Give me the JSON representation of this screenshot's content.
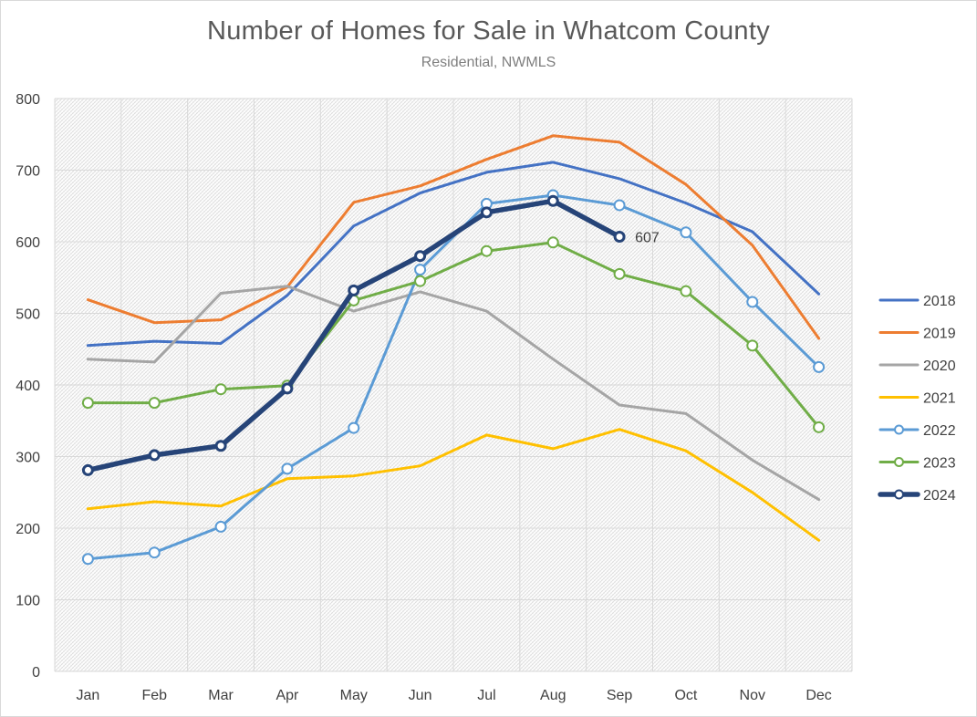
{
  "chart_data": {
    "type": "line",
    "title": "Number of Homes for Sale in Whatcom County",
    "subtitle": "Residential, NWMLS",
    "xlabel": "",
    "ylabel": "",
    "ylim": [
      0,
      800
    ],
    "yticks": [
      0,
      100,
      200,
      300,
      400,
      500,
      600,
      700,
      800
    ],
    "grid": true,
    "legend_position": "right",
    "categories": [
      "Jan",
      "Feb",
      "Mar",
      "Apr",
      "May",
      "Jun",
      "Jul",
      "Aug",
      "Sep",
      "Oct",
      "Nov",
      "Dec"
    ],
    "series": [
      {
        "name": "2018",
        "color": "#4472c4",
        "markers": false,
        "bold": false,
        "values": [
          455,
          461,
          458,
          525,
          622,
          668,
          697,
          711,
          688,
          654,
          614,
          527
        ]
      },
      {
        "name": "2019",
        "color": "#ed7d31",
        "markers": false,
        "bold": false,
        "values": [
          519,
          487,
          491,
          537,
          655,
          678,
          715,
          748,
          739,
          680,
          595,
          465
        ]
      },
      {
        "name": "2020",
        "color": "#a5a5a5",
        "markers": false,
        "bold": false,
        "values": [
          436,
          432,
          528,
          538,
          503,
          530,
          503,
          436,
          372,
          360,
          295,
          240
        ]
      },
      {
        "name": "2021",
        "color": "#ffc000",
        "markers": false,
        "bold": false,
        "values": [
          227,
          237,
          231,
          269,
          273,
          287,
          330,
          311,
          338,
          308,
          250,
          183
        ]
      },
      {
        "name": "2022",
        "color": "#5b9bd5",
        "markers": true,
        "bold": false,
        "values": [
          157,
          166,
          202,
          283,
          340,
          561,
          653,
          665,
          651,
          613,
          516,
          425
        ]
      },
      {
        "name": "2023",
        "color": "#70ad47",
        "markers": true,
        "bold": false,
        "values": [
          375,
          375,
          394,
          399,
          518,
          545,
          587,
          599,
          555,
          531,
          455,
          341
        ]
      },
      {
        "name": "2024",
        "color": "#264478",
        "markers": true,
        "bold": true,
        "values": [
          281,
          302,
          315,
          395,
          532,
          580,
          641,
          657,
          607,
          null,
          null,
          null
        ],
        "label_last": "607"
      }
    ]
  }
}
